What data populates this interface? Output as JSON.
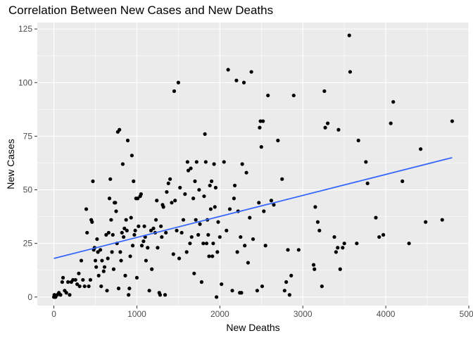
{
  "chart_data": {
    "type": "scatter",
    "title": "Correlation Between New Cases and New Deaths",
    "xlabel": "New Deaths",
    "ylabel": "New Cases",
    "xlim": [
      -200,
      5000
    ],
    "ylim": [
      -4,
      128
    ],
    "x_ticks": [
      0,
      1000,
      2000,
      3000,
      4000,
      5000
    ],
    "y_ticks": [
      0,
      25,
      50,
      75,
      100,
      125
    ],
    "grid": true,
    "background": "#ebebeb",
    "point_color": "#000000",
    "trend_color": "#3366ff",
    "trend_line": {
      "x": [
        0,
        4800
      ],
      "y": [
        18,
        65
      ]
    },
    "points": [
      [
        0,
        0
      ],
      [
        5,
        1
      ],
      [
        10,
        0
      ],
      [
        20,
        0
      ],
      [
        40,
        1
      ],
      [
        60,
        2
      ],
      [
        80,
        1
      ],
      [
        100,
        7
      ],
      [
        110,
        9
      ],
      [
        130,
        3
      ],
      [
        150,
        2
      ],
      [
        170,
        7
      ],
      [
        190,
        1
      ],
      [
        210,
        7
      ],
      [
        230,
        8
      ],
      [
        260,
        8
      ],
      [
        280,
        6
      ],
      [
        300,
        11
      ],
      [
        310,
        5
      ],
      [
        330,
        17
      ],
      [
        350,
        8
      ],
      [
        370,
        5
      ],
      [
        390,
        41
      ],
      [
        400,
        30
      ],
      [
        420,
        5
      ],
      [
        440,
        8
      ],
      [
        450,
        36
      ],
      [
        460,
        35
      ],
      [
        470,
        54
      ],
      [
        480,
        22
      ],
      [
        490,
        23
      ],
      [
        500,
        17
      ],
      [
        510,
        14
      ],
      [
        520,
        27
      ],
      [
        530,
        21
      ],
      [
        540,
        10
      ],
      [
        560,
        22
      ],
      [
        570,
        5
      ],
      [
        580,
        17
      ],
      [
        600,
        12
      ],
      [
        610,
        14
      ],
      [
        630,
        29
      ],
      [
        640,
        3
      ],
      [
        650,
        18
      ],
      [
        660,
        30
      ],
      [
        670,
        46
      ],
      [
        680,
        55
      ],
      [
        690,
        36
      ],
      [
        700,
        21
      ],
      [
        710,
        29
      ],
      [
        720,
        13
      ],
      [
        730,
        44
      ],
      [
        740,
        44
      ],
      [
        750,
        40
      ],
      [
        760,
        25
      ],
      [
        770,
        77
      ],
      [
        780,
        4
      ],
      [
        790,
        78
      ],
      [
        800,
        21
      ],
      [
        810,
        17
      ],
      [
        820,
        30
      ],
      [
        830,
        62
      ],
      [
        840,
        28
      ],
      [
        850,
        32
      ],
      [
        860,
        10
      ],
      [
        870,
        36
      ],
      [
        880,
        31
      ],
      [
        890,
        73
      ],
      [
        900,
        1
      ],
      [
        910,
        4
      ],
      [
        920,
        19
      ],
      [
        930,
        37
      ],
      [
        940,
        66
      ],
      [
        950,
        24
      ],
      [
        960,
        54
      ],
      [
        970,
        29
      ],
      [
        980,
        31
      ],
      [
        990,
        46
      ],
      [
        1000,
        9
      ],
      [
        1010,
        46
      ],
      [
        1020,
        33
      ],
      [
        1040,
        47
      ],
      [
        1050,
        48
      ],
      [
        1060,
        24
      ],
      [
        1080,
        26
      ],
      [
        1090,
        33
      ],
      [
        1100,
        28
      ],
      [
        1110,
        17
      ],
      [
        1130,
        23
      ],
      [
        1150,
        3
      ],
      [
        1170,
        31
      ],
      [
        1180,
        13
      ],
      [
        1200,
        32
      ],
      [
        1220,
        30
      ],
      [
        1230,
        36
      ],
      [
        1240,
        45
      ],
      [
        1250,
        23
      ],
      [
        1270,
        2
      ],
      [
        1280,
        1
      ],
      [
        1290,
        33
      ],
      [
        1300,
        28
      ],
      [
        1310,
        43
      ],
      [
        1320,
        42
      ],
      [
        1340,
        1
      ],
      [
        1350,
        30
      ],
      [
        1360,
        49
      ],
      [
        1380,
        53
      ],
      [
        1400,
        55
      ],
      [
        1420,
        44
      ],
      [
        1440,
        20
      ],
      [
        1450,
        96
      ],
      [
        1460,
        45
      ],
      [
        1480,
        31
      ],
      [
        1500,
        100
      ],
      [
        1510,
        18
      ],
      [
        1520,
        51
      ],
      [
        1540,
        30
      ],
      [
        1560,
        36
      ],
      [
        1580,
        48
      ],
      [
        1600,
        21
      ],
      [
        1610,
        63
      ],
      [
        1620,
        59
      ],
      [
        1640,
        25
      ],
      [
        1650,
        60
      ],
      [
        1660,
        28
      ],
      [
        1680,
        46
      ],
      [
        1690,
        11
      ],
      [
        1700,
        54
      ],
      [
        1710,
        36
      ],
      [
        1720,
        63
      ],
      [
        1740,
        29
      ],
      [
        1750,
        50
      ],
      [
        1760,
        34
      ],
      [
        1780,
        7
      ],
      [
        1800,
        25
      ],
      [
        1810,
        47
      ],
      [
        1820,
        76
      ],
      [
        1830,
        63
      ],
      [
        1840,
        25
      ],
      [
        1850,
        36
      ],
      [
        1860,
        29
      ],
      [
        1870,
        19
      ],
      [
        1880,
        52
      ],
      [
        1890,
        41
      ],
      [
        1900,
        54
      ],
      [
        1910,
        19
      ],
      [
        1920,
        25
      ],
      [
        1930,
        62
      ],
      [
        1940,
        42
      ],
      [
        1950,
        51
      ],
      [
        1960,
        0
      ],
      [
        1970,
        21
      ],
      [
        1980,
        35
      ],
      [
        2000,
        28
      ],
      [
        2020,
        6
      ],
      [
        2050,
        63
      ],
      [
        2080,
        31
      ],
      [
        2100,
        106
      ],
      [
        2120,
        41
      ],
      [
        2150,
        3
      ],
      [
        2170,
        46
      ],
      [
        2180,
        52
      ],
      [
        2200,
        101
      ],
      [
        2210,
        21
      ],
      [
        2220,
        40
      ],
      [
        2240,
        2
      ],
      [
        2250,
        28
      ],
      [
        2260,
        2
      ],
      [
        2270,
        62
      ],
      [
        2290,
        100
      ],
      [
        2300,
        24
      ],
      [
        2320,
        58
      ],
      [
        2340,
        16
      ],
      [
        2360,
        37
      ],
      [
        2380,
        105
      ],
      [
        2400,
        27
      ],
      [
        2450,
        3
      ],
      [
        2470,
        44
      ],
      [
        2480,
        79
      ],
      [
        2490,
        82
      ],
      [
        2500,
        70
      ],
      [
        2510,
        5
      ],
      [
        2520,
        82
      ],
      [
        2530,
        40
      ],
      [
        2550,
        24
      ],
      [
        2580,
        94
      ],
      [
        2620,
        45
      ],
      [
        2650,
        43
      ],
      [
        2700,
        73
      ],
      [
        2750,
        55
      ],
      [
        2780,
        3
      ],
      [
        2800,
        7
      ],
      [
        2820,
        22
      ],
      [
        2840,
        1
      ],
      [
        2860,
        10
      ],
      [
        2890,
        94
      ],
      [
        2950,
        22
      ],
      [
        3130,
        15
      ],
      [
        3140,
        13
      ],
      [
        3150,
        42
      ],
      [
        3180,
        35
      ],
      [
        3200,
        31
      ],
      [
        3230,
        5
      ],
      [
        3260,
        96
      ],
      [
        3270,
        79
      ],
      [
        3300,
        81
      ],
      [
        3380,
        28
      ],
      [
        3400,
        21
      ],
      [
        3420,
        23
      ],
      [
        3430,
        78
      ],
      [
        3450,
        13
      ],
      [
        3480,
        23
      ],
      [
        3500,
        25
      ],
      [
        3560,
        122
      ],
      [
        3570,
        105
      ],
      [
        3650,
        25
      ],
      [
        3670,
        73
      ],
      [
        3760,
        63
      ],
      [
        3780,
        53
      ],
      [
        3880,
        37
      ],
      [
        3920,
        28
      ],
      [
        3970,
        29
      ],
      [
        4060,
        81
      ],
      [
        4090,
        91
      ],
      [
        4200,
        54
      ],
      [
        4280,
        25
      ],
      [
        4420,
        69
      ],
      [
        4480,
        35
      ],
      [
        4680,
        36
      ],
      [
        4800,
        82
      ]
    ]
  }
}
